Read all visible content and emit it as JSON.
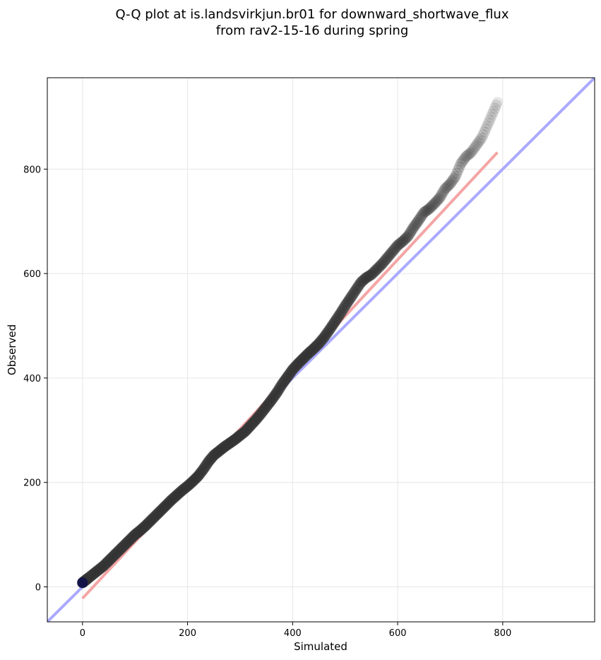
{
  "chart_data": {
    "type": "scatter",
    "title_lines": [
      "Q-Q plot at is.landsvirkjun.br01 for downward_shortwave_flux",
      "from rav2-15-16 during spring"
    ],
    "xlabel": "Simulated",
    "ylabel": "Observed",
    "xlim": [
      -67,
      975
    ],
    "ylim": [
      -67,
      975
    ],
    "xticks": [
      0,
      200,
      400,
      600,
      800
    ],
    "yticks": [
      0,
      200,
      400,
      600,
      800
    ],
    "grid": true,
    "reference_line": {
      "label": "1:1",
      "color": "#aaaaff",
      "points": [
        [
          -67,
          -67
        ],
        [
          975,
          975
        ]
      ]
    },
    "fit_line": {
      "color": "#f4a5a5",
      "points": [
        [
          0,
          -22
        ],
        [
          790,
          832
        ]
      ]
    },
    "point_color": "#333333",
    "quantiles": {
      "x": [
        0,
        5,
        10,
        20,
        30,
        40,
        50,
        60,
        70,
        80,
        90,
        100,
        110,
        120,
        130,
        140,
        150,
        160,
        170,
        180,
        190,
        200,
        210,
        220,
        230,
        240,
        250,
        260,
        270,
        280,
        290,
        300,
        310,
        320,
        330,
        340,
        350,
        360,
        370,
        380,
        390,
        400,
        410,
        420,
        430,
        440,
        450,
        460,
        470,
        480,
        490,
        500,
        510,
        520,
        530,
        540,
        550,
        560,
        570,
        580,
        590,
        600,
        610,
        620,
        630,
        640,
        650,
        660,
        670,
        680,
        690,
        700,
        710,
        720,
        730,
        740,
        750,
        760,
        770,
        780,
        790
      ],
      "y": [
        8,
        12,
        16,
        24,
        32,
        40,
        50,
        60,
        70,
        80,
        90,
        100,
        108,
        117,
        127,
        137,
        147,
        157,
        167,
        176,
        185,
        193,
        202,
        212,
        225,
        240,
        252,
        260,
        268,
        275,
        282,
        290,
        298,
        309,
        320,
        332,
        345,
        358,
        372,
        388,
        402,
        416,
        427,
        437,
        447,
        456,
        466,
        478,
        492,
        507,
        522,
        538,
        553,
        568,
        583,
        592,
        598,
        608,
        618,
        630,
        642,
        654,
        662,
        672,
        688,
        702,
        717,
        724,
        734,
        745,
        762,
        772,
        786,
        810,
        824,
        832,
        846,
        860,
        882,
        905,
        928
      ]
    }
  }
}
